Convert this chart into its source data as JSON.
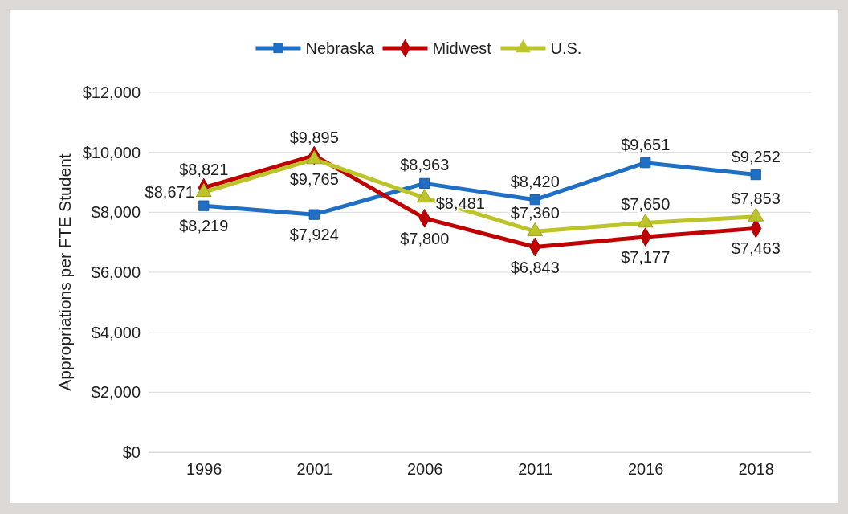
{
  "chart_data": {
    "type": "line",
    "ylabel": "Appropriations per FTE Student",
    "categories": [
      "1996",
      "2001",
      "2006",
      "2011",
      "2016",
      "2018"
    ],
    "series": [
      {
        "name": "Nebraska",
        "color": "#1f6fc5",
        "marker": "square",
        "values": [
          8219,
          7924,
          8963,
          8420,
          9651,
          9252
        ],
        "value_labels": [
          "$8,219",
          "$7,924",
          "$8,963",
          "$8,420",
          "$9,651",
          "$9,252"
        ]
      },
      {
        "name": "Midwest",
        "color": "#c00000",
        "marker": "diamond",
        "values": [
          8821,
          9895,
          7800,
          6843,
          7177,
          7463
        ],
        "value_labels": [
          "$8,821",
          "$9,895",
          "$7,800",
          "$6,843",
          "$7,177",
          "$7,463"
        ]
      },
      {
        "name": "U.S.",
        "color": "#bcc42a",
        "marker": "triangle",
        "values": [
          8671,
          9765,
          8481,
          7360,
          7650,
          7853
        ],
        "value_labels": [
          "$8,671",
          "$9,765",
          "$8,481",
          "$7,360",
          "$7,650",
          "$7,853"
        ]
      }
    ],
    "ylim": [
      0,
      12000
    ],
    "yticks": [
      {
        "value": 0,
        "label": "$0"
      },
      {
        "value": 2000,
        "label": "$2,000"
      },
      {
        "value": 4000,
        "label": "$4,000"
      },
      {
        "value": 6000,
        "label": "$6,000"
      },
      {
        "value": 8000,
        "label": "$8,000"
      },
      {
        "value": 10000,
        "label": "$10,000"
      },
      {
        "value": 12000,
        "label": "$12,000"
      }
    ],
    "grid": "y",
    "legend": "top",
    "line_style": "solid"
  }
}
